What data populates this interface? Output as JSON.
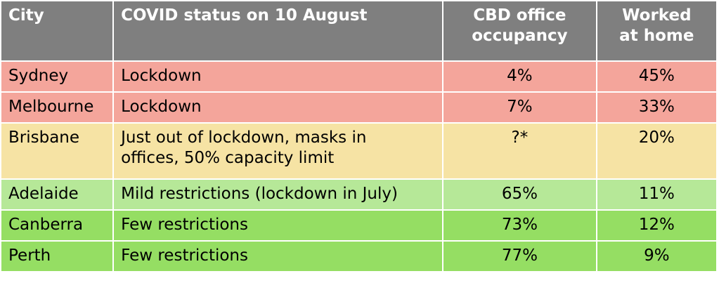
{
  "headers": [
    "City",
    "COVID status on 10 August",
    "CBD office occupancy",
    "Worked at home"
  ],
  "rows": [
    {
      "city": "Sydney",
      "status": "Lockdown",
      "occupancy": "4%",
      "home": "45%",
      "color": "#f4a59b"
    },
    {
      "city": "Melbourne",
      "status": "Lockdown",
      "occupancy": "7%",
      "home": "33%",
      "color": "#f4a59b"
    },
    {
      "city": "Brisbane",
      "status": "Just out of lockdown, masks in offices, 50% capacity limit",
      "occupancy": "?*",
      "home": "20%",
      "color": "#f6e3a4"
    },
    {
      "city": "Adelaide",
      "status": "Mild restrictions (lockdown in July)",
      "occupancy": "65%",
      "home": "11%",
      "color": "#b6e898"
    },
    {
      "city": "Canberra",
      "status": "Few restrictions",
      "occupancy": "73%",
      "home": "12%",
      "color": "#95de63"
    },
    {
      "city": "Perth",
      "status": "Few restrictions",
      "occupancy": "77%",
      "home": "9%",
      "color": "#95de63"
    }
  ]
}
